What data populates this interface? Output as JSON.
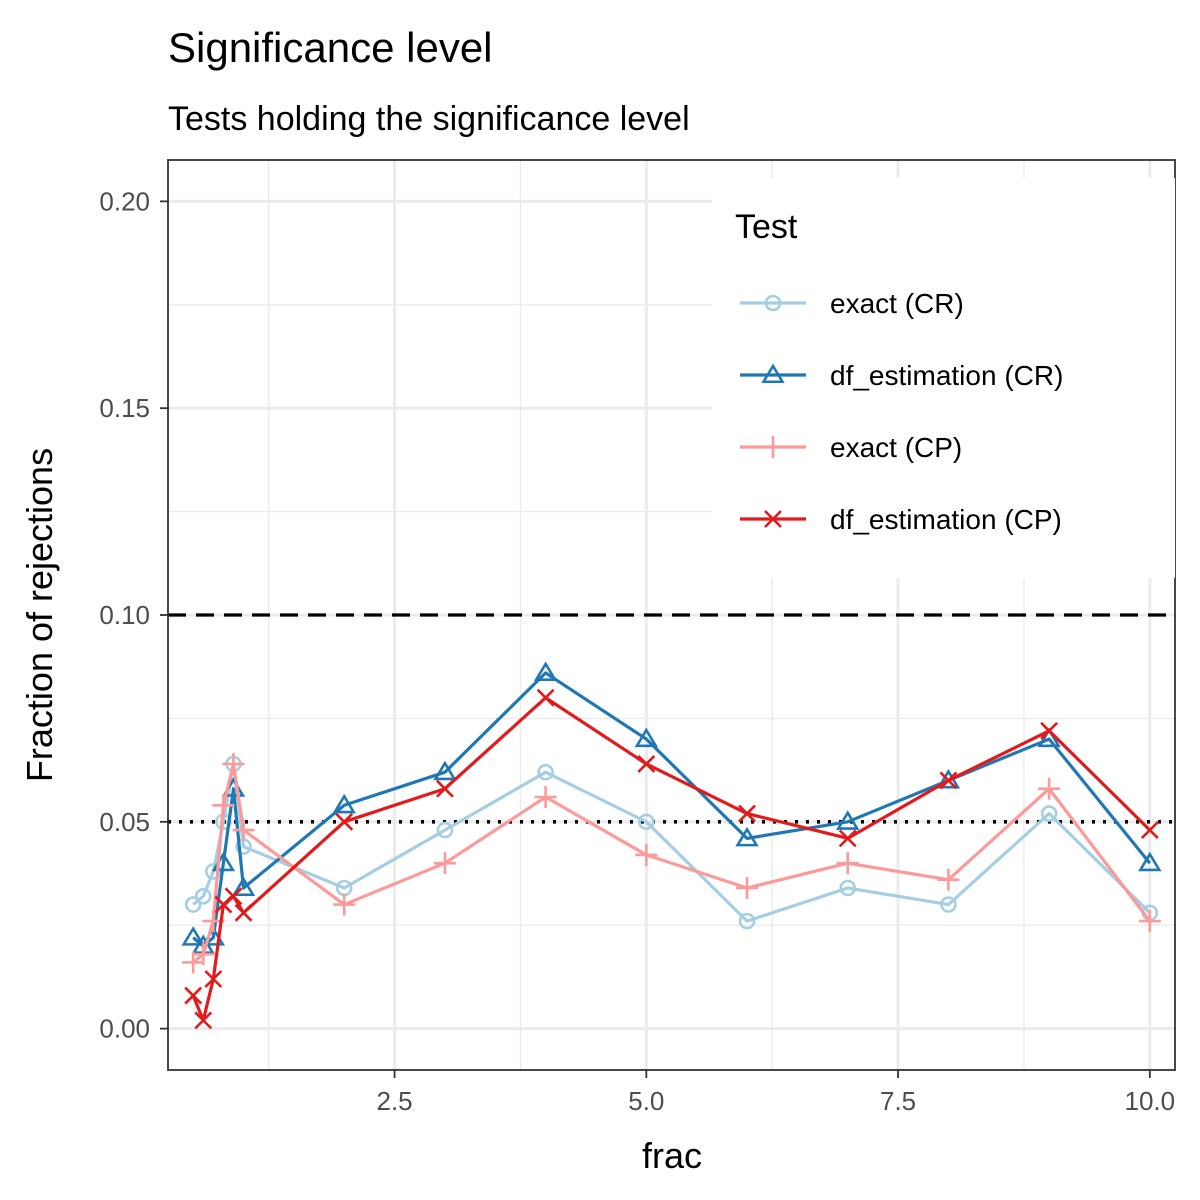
{
  "chart_data": {
    "type": "line",
    "title": "Significance level",
    "subtitle": "Tests holding the significance level",
    "xlabel": "frac",
    "ylabel": "Fraction of rejections",
    "xlim": [
      0.25,
      10.25
    ],
    "ylim": [
      -0.01,
      0.21
    ],
    "x_ticks": [
      2.5,
      5.0,
      7.5,
      10.0
    ],
    "x_tick_labels": [
      "2.5",
      "5.0",
      "7.5",
      "10.0"
    ],
    "y_ticks": [
      0.0,
      0.05,
      0.1,
      0.15,
      0.2
    ],
    "y_tick_labels": [
      "0.00",
      "0.05",
      "0.10",
      "0.15",
      "0.20"
    ],
    "grid": true,
    "reference_lines": [
      {
        "y": 0.1,
        "style": "dashed",
        "color": "#000000"
      },
      {
        "y": 0.05,
        "style": "dotted",
        "color": "#000000"
      }
    ],
    "legend": {
      "title": "Test",
      "position": "top-right"
    },
    "x": [
      0.5,
      0.6,
      0.7,
      0.8,
      0.9,
      1.0,
      2,
      3,
      4,
      5,
      6,
      7,
      8,
      9,
      10
    ],
    "series": [
      {
        "name": "exact (CR)",
        "color": "#a6cee3",
        "marker": "circle",
        "values": [
          0.03,
          0.032,
          0.038,
          0.05,
          0.064,
          0.044,
          0.034,
          0.048,
          0.062,
          0.05,
          0.026,
          0.034,
          0.03,
          0.052,
          0.028
        ]
      },
      {
        "name": "df_estimation (CR)",
        "color": "#1f78b4",
        "marker": "triangle",
        "values": [
          0.022,
          0.02,
          0.022,
          0.04,
          0.058,
          0.034,
          0.054,
          0.062,
          0.086,
          0.07,
          0.046,
          0.05,
          0.06,
          0.07,
          0.04
        ]
      },
      {
        "name": "exact (CP)",
        "color": "#fb9a99",
        "marker": "plus",
        "values": [
          0.016,
          0.018,
          0.026,
          0.054,
          0.064,
          0.048,
          0.03,
          0.04,
          0.056,
          0.042,
          0.034,
          0.04,
          0.036,
          0.058,
          0.026
        ]
      },
      {
        "name": "df_estimation (CP)",
        "color": "#e31a1c",
        "marker": "cross",
        "values": [
          0.008,
          0.002,
          0.012,
          0.03,
          0.032,
          0.028,
          0.05,
          0.058,
          0.08,
          0.064,
          0.052,
          0.046,
          0.06,
          0.072,
          0.048
        ]
      }
    ]
  }
}
